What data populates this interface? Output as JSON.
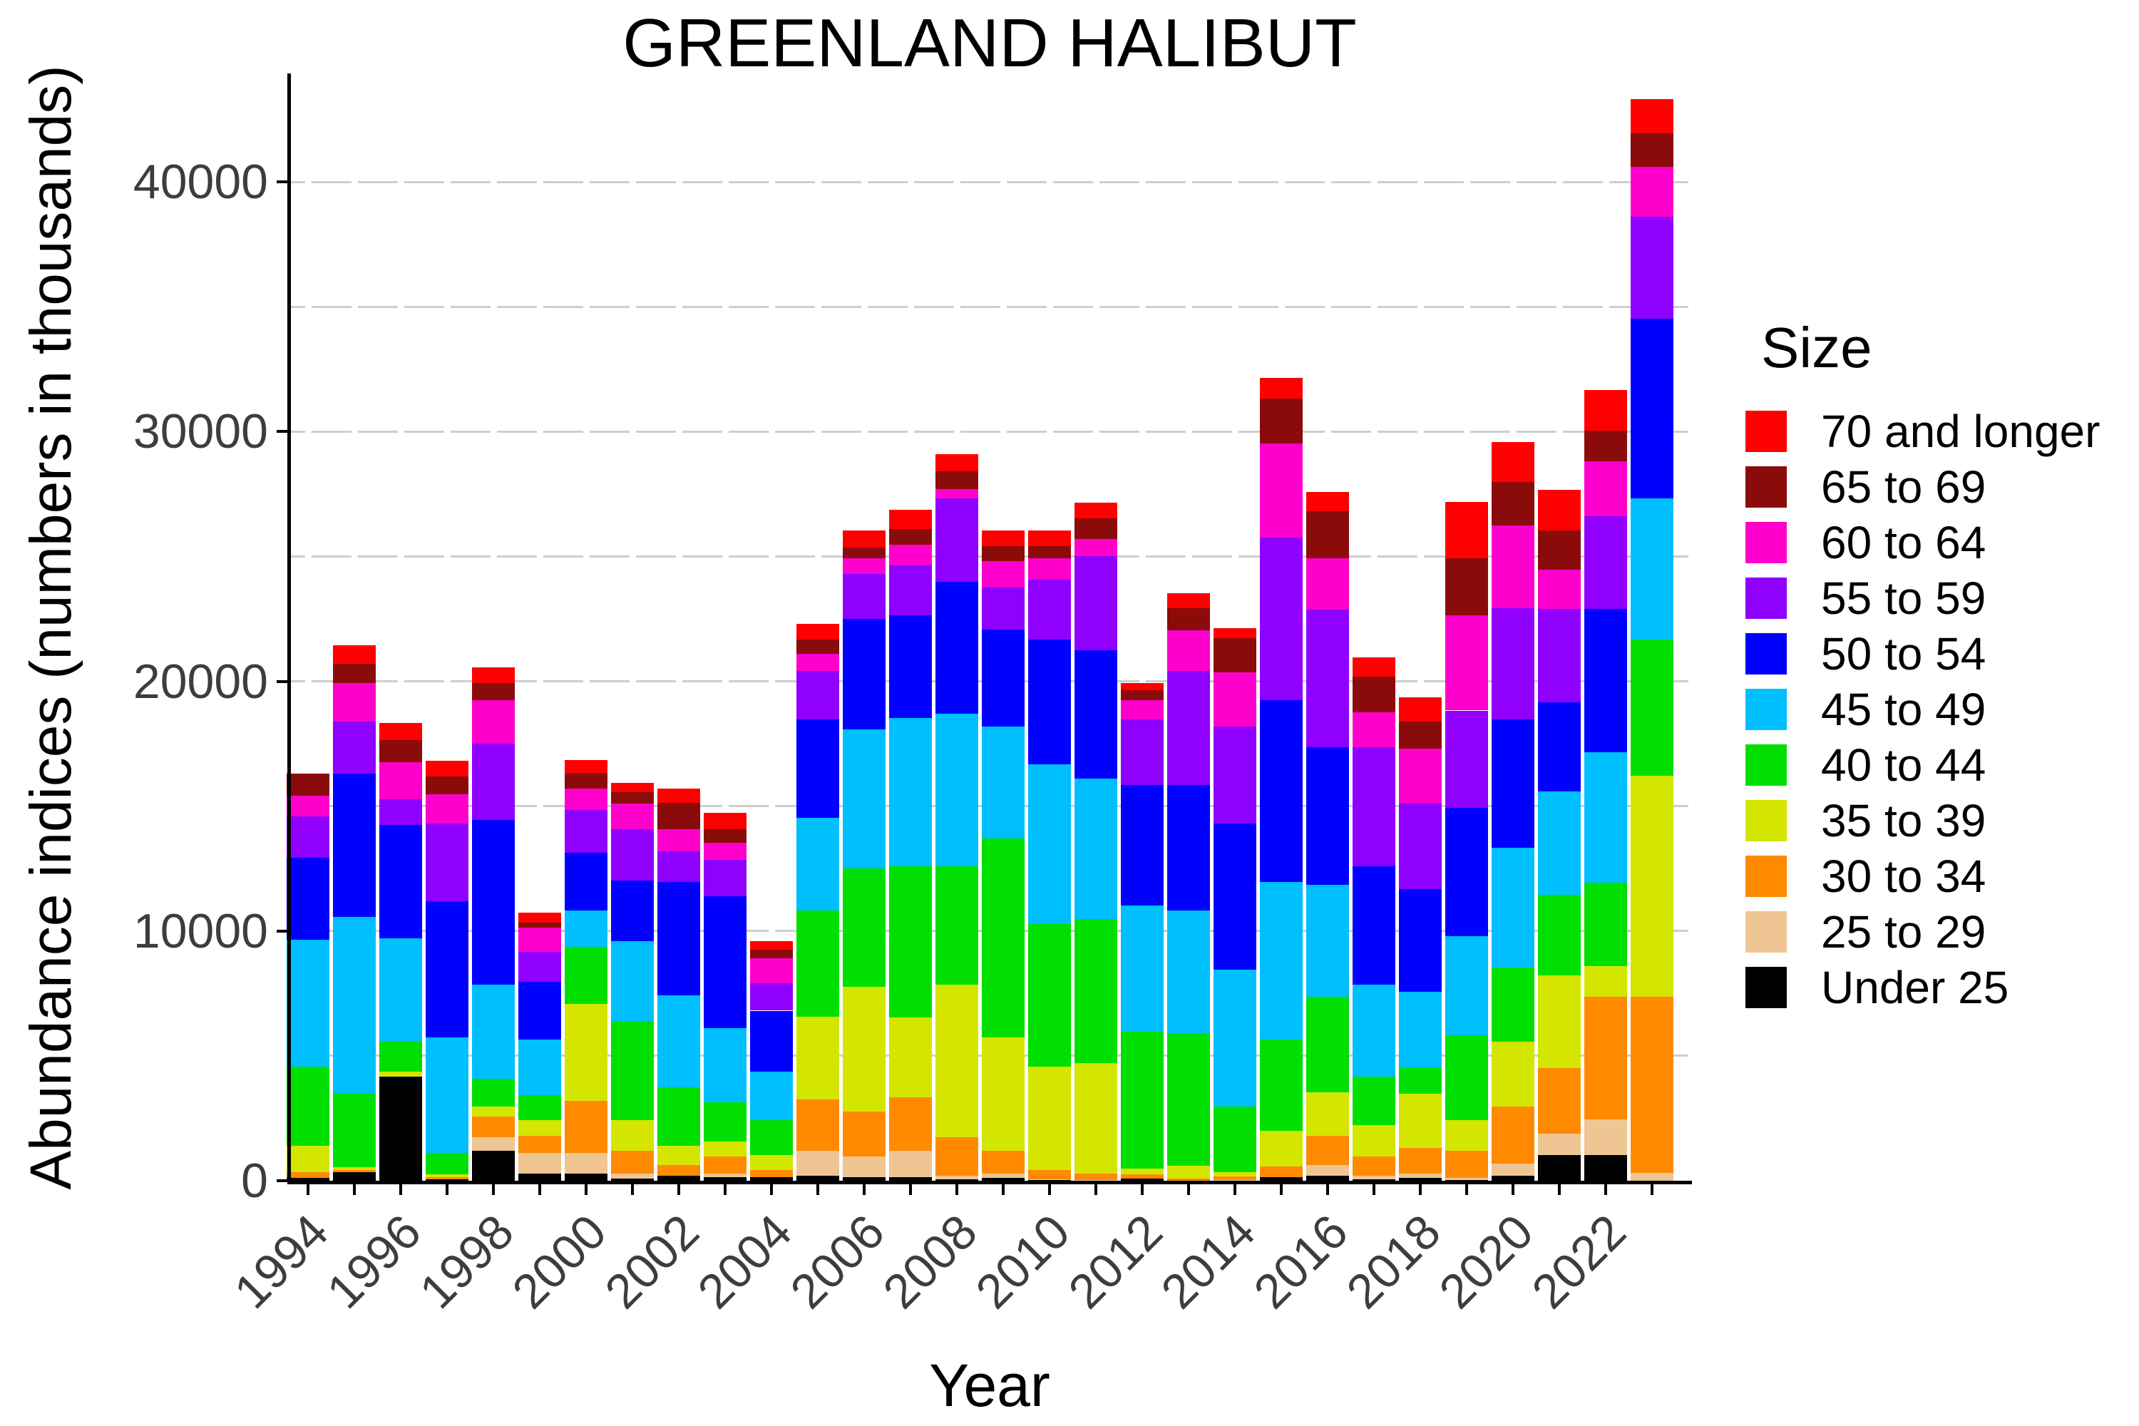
{
  "title": "GREENLAND HALIBUT",
  "chart_data": {
    "type": "bar",
    "stacked": true,
    "title": "GREENLAND HALIBUT",
    "xlabel": "Year",
    "ylabel": "Abundance indices (numbers in thousands)",
    "legend_title": "Size",
    "legend_position": "right",
    "grid": true,
    "background": "#ffffff",
    "gridline_color": "#cecece",
    "ylim": [
      0,
      44340
    ],
    "yticks": [
      0,
      10000,
      20000,
      30000,
      40000
    ],
    "grid_values": [
      5000,
      10000,
      15000,
      20000,
      25000,
      30000,
      35000,
      40000
    ],
    "categories": [
      1994,
      1995,
      1996,
      1997,
      1998,
      1999,
      2000,
      2001,
      2002,
      2003,
      2004,
      2005,
      2006,
      2007,
      2008,
      2009,
      2010,
      2011,
      2012,
      2013,
      2014,
      2015,
      2016,
      2017,
      2018,
      2019,
      2020,
      2021,
      2022,
      2023
    ],
    "labeled_years": [
      1994,
      1996,
      1998,
      2000,
      2002,
      2004,
      2006,
      2008,
      2010,
      2012,
      2014,
      2016,
      2018,
      2020,
      2022
    ],
    "stack_note": "series listed in legend order; last series (Under 25) is at the bottom of each stack",
    "series": [
      {
        "name": "70 and longer",
        "color": "#FF0000",
        "values": [
          0,
          750,
          700,
          610,
          640,
          400,
          550,
          360,
          560,
          630,
          330,
          640,
          670,
          750,
          670,
          610,
          610,
          610,
          280,
          610,
          390,
          830,
          780,
          780,
          970,
          2250,
          1620,
          1630,
          1630,
          1370
        ]
      },
      {
        "name": "65 to 69",
        "color": "#8B0B0B",
        "values": [
          880,
          780,
          890,
          730,
          670,
          210,
          610,
          470,
          1050,
          560,
          330,
          560,
          440,
          640,
          720,
          610,
          500,
          830,
          390,
          890,
          1390,
          1780,
          1890,
          1440,
          1080,
          2280,
          1720,
          1570,
          1230,
          1340
        ]
      },
      {
        "name": "60 to 64",
        "color": "#FF00CC",
        "values": [
          840,
          1530,
          1470,
          1160,
          1750,
          970,
          840,
          1000,
          890,
          670,
          1000,
          690,
          610,
          830,
          390,
          1060,
          840,
          700,
          780,
          1610,
          2160,
          3780,
          2060,
          1390,
          2220,
          3810,
          3330,
          1570,
          2200,
          2000
        ]
      },
      {
        "name": "55 to 59",
        "color": "#8F00FF",
        "values": [
          1660,
          2080,
          1030,
          3110,
          3060,
          1195,
          1720,
          2060,
          1250,
          1470,
          1110,
          1950,
          1810,
          2000,
          3340,
          1670,
          2410,
          3750,
          2630,
          4580,
          3890,
          6500,
          5500,
          4780,
          3420,
          3890,
          4450,
          3720,
          3710,
          4090
        ]
      },
      {
        "name": "50 to 54",
        "color": "#0000FF",
        "values": [
          3280,
          5750,
          4530,
          5450,
          6580,
          2335,
          2310,
          2450,
          4530,
          5280,
          2450,
          3940,
          4440,
          4110,
          5270,
          3880,
          5000,
          5140,
          4810,
          5010,
          5840,
          7300,
          5500,
          4720,
          4090,
          5160,
          5140,
          3570,
          5720,
          7200
        ]
      },
      {
        "name": "45 to 49",
        "color": "#00BFFF",
        "values": [
          5060,
          7090,
          4160,
          4650,
          3780,
          2220,
          1470,
          3190,
          3670,
          2970,
          1940,
          3700,
          5560,
          5950,
          6120,
          4500,
          6390,
          5640,
          5060,
          4910,
          5500,
          6310,
          4500,
          3690,
          3050,
          3950,
          4800,
          4140,
          5230,
          5650
        ]
      },
      {
        "name": "40 to 44",
        "color": "#00DF00",
        "values": [
          3190,
          2920,
          1200,
          850,
          1110,
          1000,
          2280,
          3970,
          2360,
          1560,
          1390,
          4250,
          4720,
          6050,
          4720,
          7950,
          5700,
          5750,
          5470,
          5320,
          2610,
          3640,
          3830,
          1950,
          1060,
          3410,
          2970,
          3230,
          3340,
          5430
        ]
      },
      {
        "name": "35 to 39",
        "color": "#D4E600",
        "values": [
          1050,
          120,
          190,
          100,
          390,
          620,
          3890,
          1230,
          750,
          610,
          610,
          3330,
          5000,
          3200,
          6110,
          4560,
          4160,
          4440,
          250,
          500,
          170,
          1430,
          1720,
          1250,
          2160,
          1230,
          2590,
          3720,
          1230,
          8860
        ]
      },
      {
        "name": "30 to 34",
        "color": "#FF8A00",
        "values": [
          230,
          100,
          0,
          80,
          830,
          690,
          2080,
          910,
          450,
          690,
          280,
          2060,
          1810,
          2140,
          1560,
          910,
          350,
          250,
          160,
          100,
          150,
          430,
          1170,
          780,
          1030,
          1080,
          2280,
          2620,
          4910,
          7060
        ]
      },
      {
        "name": "25 to 29",
        "color": "#EFC593",
        "values": [
          0,
          0,
          0,
          0,
          560,
          830,
          830,
          200,
          0,
          140,
          0,
          1000,
          830,
          1050,
          130,
          170,
          50,
          30,
          0,
          0,
          30,
          0,
          450,
          130,
          170,
          80,
          500,
          860,
          1430,
          310
        ]
      },
      {
        "name": "Under 25",
        "color": "#000000",
        "values": [
          110,
          330,
          4170,
          70,
          1190,
          280,
          280,
          80,
          190,
          140,
          140,
          190,
          140,
          140,
          60,
          110,
          20,
          0,
          90,
          0,
          0,
          140,
          190,
          60,
          110,
          30,
          190,
          1030,
          1030,
          0
        ]
      }
    ]
  }
}
